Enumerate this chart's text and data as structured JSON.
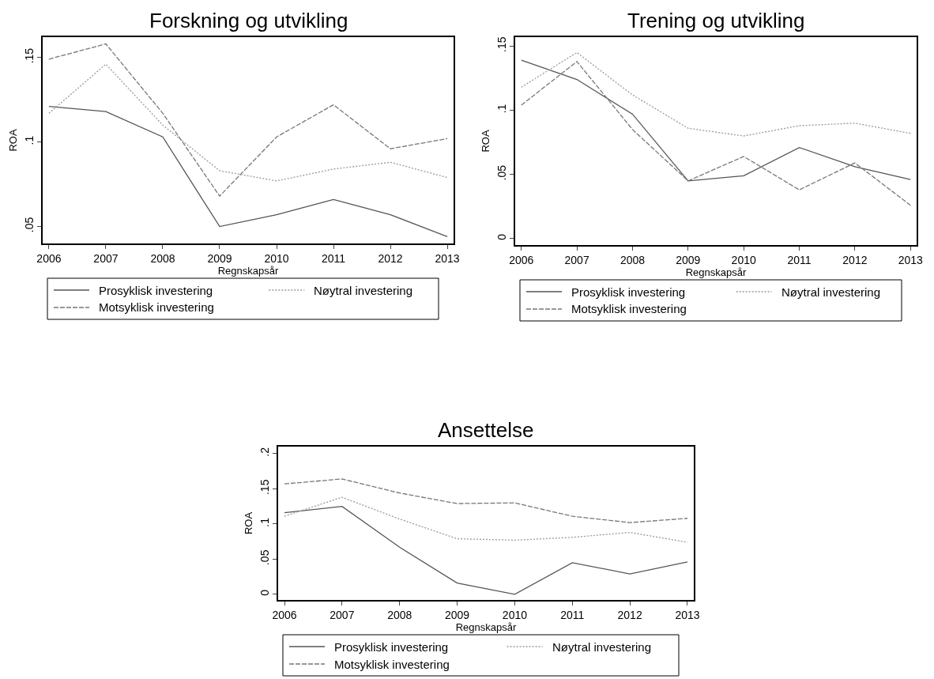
{
  "chart_data": [
    {
      "type": "line",
      "title": "Forskning og utvikling",
      "xlabel": "Regnskapsår",
      "ylabel": "ROA",
      "x": [
        2006,
        2007,
        2008,
        2009,
        2010,
        2011,
        2012,
        2013
      ],
      "xlim": [
        2005.89,
        2013.11
      ],
      "xticks": [
        2006,
        2007,
        2008,
        2009,
        2010,
        2011,
        2012,
        2013
      ],
      "ylim": [
        0.04,
        0.162
      ],
      "yticks": [
        {
          "value": 0.05,
          "label": ".05"
        },
        {
          "value": 0.1,
          "label": ".1"
        },
        {
          "value": 0.15,
          "label": ".15"
        }
      ],
      "legend": "bottom",
      "marker": "none",
      "series": [
        {
          "name": "Prosyklisk investering",
          "color": "#555555",
          "line_style": "solid",
          "values": [
            0.121,
            0.118,
            0.103,
            0.05,
            0.057,
            0.066,
            0.057,
            0.044
          ]
        },
        {
          "name": "Nøytral investering",
          "color": "#999999",
          "line_style": "dotted",
          "values": [
            0.117,
            0.146,
            0.11,
            0.083,
            0.077,
            0.084,
            0.088,
            0.079
          ]
        },
        {
          "name": "Motsyklisk investering",
          "color": "#777777",
          "line_style": "dashed",
          "values": [
            0.149,
            0.158,
            0.117,
            0.068,
            0.103,
            0.122,
            0.096,
            0.102
          ]
        }
      ]
    },
    {
      "type": "line",
      "title": "Trening og utvikling",
      "xlabel": "Regnskapsår",
      "ylabel": "ROA",
      "x": [
        2006,
        2007,
        2008,
        2009,
        2010,
        2011,
        2012,
        2013
      ],
      "xlim": [
        2005.89,
        2013.11
      ],
      "xticks": [
        2006,
        2007,
        2008,
        2009,
        2010,
        2011,
        2012,
        2013
      ],
      "ylim": [
        -0.005,
        0.157
      ],
      "yticks": [
        {
          "value": 0,
          "label": "0"
        },
        {
          "value": 0.05,
          "label": ".05"
        },
        {
          "value": 0.1,
          "label": ".1"
        },
        {
          "value": 0.15,
          "label": ".15"
        }
      ],
      "legend": "bottom",
      "marker": "none",
      "series": [
        {
          "name": "Prosyklisk investering",
          "color": "#555555",
          "line_style": "solid",
          "values": [
            0.139,
            0.124,
            0.097,
            0.045,
            0.049,
            0.071,
            0.056,
            0.046
          ]
        },
        {
          "name": "Nøytral investering",
          "color": "#999999",
          "line_style": "dotted",
          "values": [
            0.118,
            0.145,
            0.112,
            0.086,
            0.08,
            0.088,
            0.09,
            0.082
          ]
        },
        {
          "name": "Motsyklisk investering",
          "color": "#777777",
          "line_style": "dashed",
          "values": [
            0.104,
            0.138,
            0.085,
            0.045,
            0.064,
            0.038,
            0.059,
            0.026
          ]
        }
      ]
    },
    {
      "type": "line",
      "title": "Ansettelse",
      "xlabel": "Regnskapsår",
      "ylabel": "ROA",
      "x": [
        2006,
        2007,
        2008,
        2009,
        2010,
        2011,
        2012,
        2013
      ],
      "xlim": [
        2005.89,
        2013.11
      ],
      "xticks": [
        2006,
        2007,
        2008,
        2009,
        2010,
        2011,
        2012,
        2013
      ],
      "ylim": [
        -0.008,
        0.21
      ],
      "yticks": [
        {
          "value": 0,
          "label": "0"
        },
        {
          "value": 0.05,
          "label": ".05"
        },
        {
          "value": 0.1,
          "label": ".1"
        },
        {
          "value": 0.15,
          "label": ".15"
        },
        {
          "value": 0.2,
          "label": ".2"
        }
      ],
      "legend": "bottom",
      "marker": "none",
      "series": [
        {
          "name": "Prosyklisk investering",
          "color": "#555555",
          "line_style": "solid",
          "values": [
            0.116,
            0.125,
            0.067,
            0.016,
            0.0,
            0.045,
            0.029,
            0.046
          ]
        },
        {
          "name": "Nøytral investering",
          "color": "#999999",
          "line_style": "dotted",
          "values": [
            0.111,
            0.138,
            0.107,
            0.079,
            0.077,
            0.081,
            0.088,
            0.074
          ]
        },
        {
          "name": "Motsyklisk investering",
          "color": "#777777",
          "line_style": "dashed",
          "values": [
            0.157,
            0.164,
            0.144,
            0.129,
            0.13,
            0.111,
            0.102,
            0.108
          ]
        }
      ]
    }
  ]
}
